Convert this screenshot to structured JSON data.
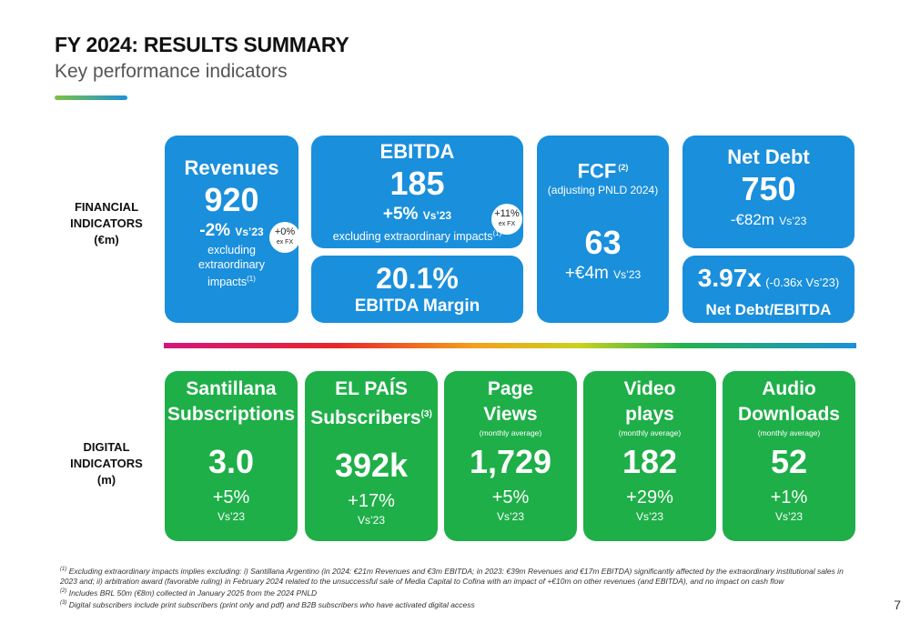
{
  "header": {
    "title": "FY 2024: RESULTS SUMMARY",
    "subtitle": "Key performance indicators"
  },
  "financial": {
    "label": [
      "FINANCIAL",
      "INDICATORS",
      "(€m)"
    ],
    "revenues": {
      "title": "Revenues",
      "value": "920",
      "change": "-2%",
      "vs": "Vs’23",
      "note": "excluding extraordinary impacts",
      "note_mark": "(1)",
      "badge": "+0%",
      "badge_note": "ex FX"
    },
    "ebitda": {
      "title": "EBITDA",
      "value": "185",
      "change": "+5%",
      "vs": "Vs’23",
      "note": "excluding extraordinary impacts",
      "note_mark": "(1)",
      "badge": "+11%",
      "badge_note": "ex FX"
    },
    "ebitda_margin": {
      "value": "20.1%",
      "label": "EBITDA Margin"
    },
    "fcf": {
      "title": "FCF",
      "title_mark": "(2)",
      "subtitle": "(adjusting PNLD 2024)",
      "value": "63",
      "change": "+€4m",
      "vs": "Vs’23"
    },
    "net_debt": {
      "title": "Net Debt",
      "value": "750",
      "change": "-€82m",
      "vs": "Vs’23"
    },
    "leverage": {
      "value": "3.97x",
      "change": "(-0.36x Vs’23)",
      "label": "Net Debt/EBITDA"
    }
  },
  "digital": {
    "label": [
      "DIGITAL",
      "INDICATORS",
      "(m)"
    ],
    "cards": [
      {
        "title": [
          "Santillana",
          "Subscriptions"
        ],
        "value": "3.0",
        "change": "+5%",
        "vs": "Vs’23"
      },
      {
        "title": [
          "EL PAÍS",
          "Subscribers"
        ],
        "title_mark": "(3)",
        "value": "392k",
        "change": "+17%",
        "vs": "Vs’23"
      },
      {
        "title": [
          "Page",
          "Views"
        ],
        "note": "(monthly average)",
        "value": "1,729",
        "change": "+5%",
        "vs": "Vs’23"
      },
      {
        "title": [
          "Video",
          "plays"
        ],
        "note": "(monthly average)",
        "value": "182",
        "change": "+29%",
        "vs": "Vs’23"
      },
      {
        "title": [
          "Audio",
          "Downloads"
        ],
        "note": "(monthly average)",
        "value": "52",
        "change": "+1%",
        "vs": "Vs’23"
      }
    ]
  },
  "footnotes": [
    {
      "mark": "(1)",
      "text": "Excluding extraordinary impacts implies excluding: i) Santillana Argentino (in 2024: €21m Revenues and €3m EBITDA; in 2023: €39m Revenues and €17m EBITDA) significantly affected by the extraordinary institutional sales in 2023 and; ii) arbitration award (favorable ruling) in February 2024 related to the unsuccessful sale of Media Capital to Cofina with an impact of +€10m on other revenues (and EBITDA), and no impact on cash flow"
    },
    {
      "mark": "(2)",
      "text": "Includes BRL 50m (€8m) collected in January 2025 from the 2024 PNLD"
    },
    {
      "mark": "(3)",
      "text": "Digital subscribers include print subscribers (print only and pdf) and B2B subscribers who have activated digital access"
    }
  ],
  "page_number": "7"
}
